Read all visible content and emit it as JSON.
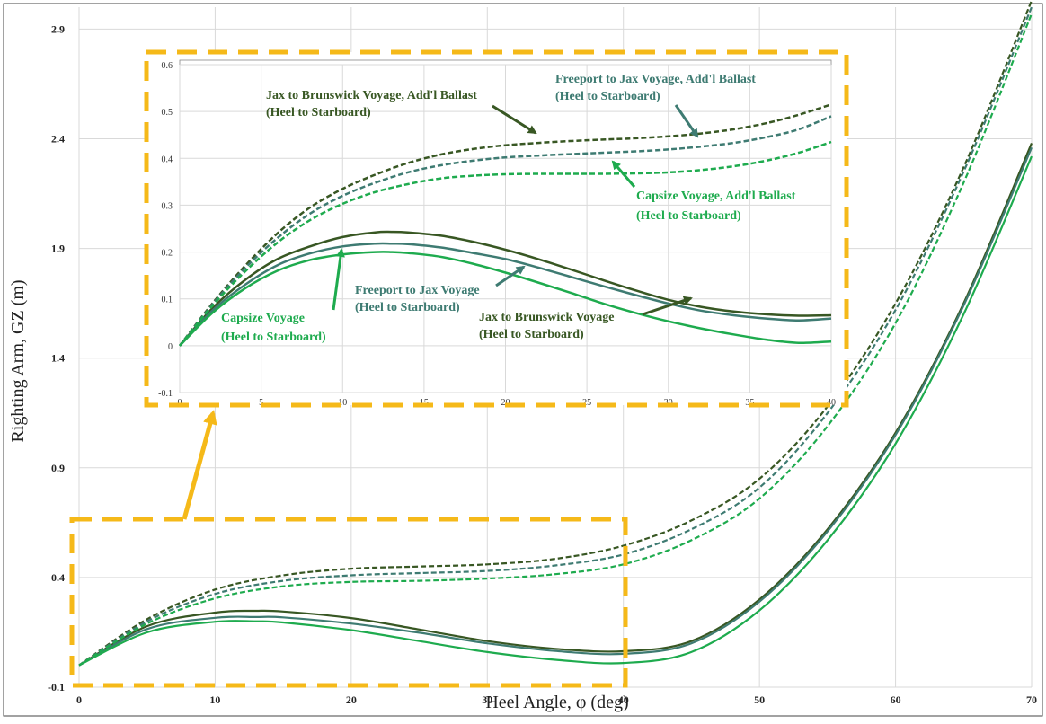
{
  "colors": {
    "jax": "#385723",
    "freeport": "#3e7b72",
    "capsize": "#1eab4e",
    "box": "#f5b919",
    "grid": "#d9d9d9"
  },
  "chart_data": [
    {
      "type": "line",
      "xlabel": "Heel Angle, φ (deg)",
      "ylabel": "Righting Arm, GZ (m)",
      "xlim": [
        0,
        70
      ],
      "ylim": [
        -0.1,
        3.0
      ],
      "xticks": [
        "0",
        "10",
        "20",
        "30",
        "40",
        "50",
        "60",
        "70"
      ],
      "yticks": [
        "-0.1",
        "0.4",
        "0.9",
        "1.4",
        "1.9",
        "2.4",
        "2.9"
      ],
      "grid": true,
      "series": [
        {
          "style": "solid",
          "color": "jax",
          "x": [
            0,
            5,
            10,
            13,
            15,
            20,
            25,
            30,
            35,
            40,
            45,
            50,
            55,
            60,
            65,
            70
          ],
          "y": [
            0,
            0.178,
            0.24,
            0.248,
            0.245,
            0.215,
            0.163,
            0.11,
            0.075,
            0.064,
            0.11,
            0.3,
            0.62,
            1.06,
            1.65,
            2.38
          ]
        },
        {
          "style": "solid",
          "color": "freeport",
          "x": [
            0,
            5,
            10,
            13,
            15,
            20,
            25,
            30,
            35,
            40,
            45,
            50,
            55,
            60,
            65,
            70
          ],
          "y": [
            0,
            0.165,
            0.216,
            0.22,
            0.218,
            0.19,
            0.148,
            0.1,
            0.065,
            0.052,
            0.1,
            0.29,
            0.61,
            1.05,
            1.64,
            2.36
          ]
        },
        {
          "style": "solid",
          "color": "capsize",
          "x": [
            0,
            5,
            10,
            13,
            15,
            20,
            25,
            30,
            35,
            40,
            45,
            50,
            55,
            60,
            65,
            70
          ],
          "y": [
            0,
            0.15,
            0.198,
            0.2,
            0.195,
            0.16,
            0.11,
            0.06,
            0.025,
            0.01,
            0.06,
            0.25,
            0.57,
            1.01,
            1.6,
            2.32
          ]
        },
        {
          "style": "dashed",
          "color": "jax",
          "x": [
            0,
            5,
            10,
            15,
            20,
            25,
            30,
            35,
            40,
            45,
            50,
            55,
            60,
            65,
            70
          ],
          "y": [
            0,
            0.21,
            0.345,
            0.41,
            0.44,
            0.45,
            0.46,
            0.485,
            0.545,
            0.66,
            0.85,
            1.18,
            1.65,
            2.27,
            3.03
          ]
        },
        {
          "style": "dashed",
          "color": "freeport",
          "x": [
            0,
            5,
            10,
            15,
            20,
            25,
            30,
            35,
            40,
            45,
            50,
            55,
            60,
            65,
            70
          ],
          "y": [
            0,
            0.2,
            0.325,
            0.385,
            0.41,
            0.42,
            0.43,
            0.455,
            0.505,
            0.62,
            0.81,
            1.15,
            1.62,
            2.25,
            3.0
          ]
        },
        {
          "style": "dashed",
          "color": "capsize",
          "x": [
            0,
            5,
            10,
            15,
            20,
            25,
            30,
            35,
            40,
            45,
            50,
            55,
            60,
            65,
            70
          ],
          "y": [
            0,
            0.19,
            0.305,
            0.36,
            0.38,
            0.385,
            0.395,
            0.415,
            0.46,
            0.57,
            0.76,
            1.09,
            1.56,
            2.2,
            2.97
          ]
        }
      ]
    },
    {
      "type": "line",
      "xlim": [
        0,
        40
      ],
      "ylim": [
        -0.1,
        0.6
      ],
      "xticks": [
        "0",
        "5",
        "10",
        "15",
        "20",
        "25",
        "30",
        "35",
        "40"
      ],
      "yticks": [
        "-0.1",
        "0",
        "0.1",
        "0.2",
        "0.3",
        "0.4",
        "0.5",
        "0.6"
      ],
      "grid": true,
      "series": [
        {
          "style": "solid",
          "color": "jax",
          "x": [
            0,
            2,
            4,
            6,
            8,
            10,
            12,
            13,
            14,
            16,
            18,
            20,
            22,
            24,
            26,
            28,
            30,
            32,
            34,
            36,
            38,
            40
          ],
          "y": [
            0,
            0.08,
            0.14,
            0.185,
            0.212,
            0.232,
            0.242,
            0.243,
            0.242,
            0.235,
            0.222,
            0.205,
            0.185,
            0.163,
            0.14,
            0.118,
            0.098,
            0.083,
            0.073,
            0.067,
            0.064,
            0.065
          ]
        },
        {
          "style": "solid",
          "color": "freeport",
          "x": [
            0,
            2,
            4,
            6,
            8,
            10,
            12,
            13,
            14,
            16,
            18,
            20,
            22,
            24,
            26,
            28,
            30,
            32,
            34,
            36,
            38,
            40
          ],
          "y": [
            0,
            0.075,
            0.13,
            0.172,
            0.197,
            0.212,
            0.218,
            0.218,
            0.217,
            0.21,
            0.198,
            0.185,
            0.167,
            0.147,
            0.127,
            0.108,
            0.09,
            0.075,
            0.065,
            0.058,
            0.054,
            0.058
          ]
        },
        {
          "style": "solid",
          "color": "capsize",
          "x": [
            0,
            2,
            4,
            6,
            8,
            10,
            12,
            13,
            14,
            16,
            18,
            20,
            22,
            24,
            26,
            28,
            30,
            32,
            34,
            36,
            38,
            40
          ],
          "y": [
            0,
            0.07,
            0.122,
            0.16,
            0.183,
            0.195,
            0.2,
            0.2,
            0.198,
            0.19,
            0.175,
            0.156,
            0.135,
            0.113,
            0.09,
            0.07,
            0.052,
            0.037,
            0.024,
            0.013,
            0.006,
            0.009
          ]
        },
        {
          "style": "dashed",
          "color": "jax",
          "x": [
            0,
            2,
            4,
            6,
            8,
            10,
            12,
            14,
            16,
            18,
            20,
            22,
            24,
            26,
            28,
            30,
            32,
            34,
            36,
            38,
            40
          ],
          "y": [
            0,
            0.09,
            0.17,
            0.24,
            0.295,
            0.335,
            0.365,
            0.39,
            0.408,
            0.42,
            0.428,
            0.433,
            0.437,
            0.44,
            0.443,
            0.447,
            0.453,
            0.462,
            0.475,
            0.493,
            0.515
          ]
        },
        {
          "style": "dashed",
          "color": "freeport",
          "x": [
            0,
            2,
            4,
            6,
            8,
            10,
            12,
            14,
            16,
            18,
            20,
            22,
            24,
            26,
            28,
            30,
            32,
            34,
            36,
            38,
            40
          ],
          "y": [
            0,
            0.088,
            0.165,
            0.23,
            0.282,
            0.32,
            0.348,
            0.37,
            0.385,
            0.395,
            0.402,
            0.406,
            0.409,
            0.412,
            0.415,
            0.419,
            0.425,
            0.433,
            0.445,
            0.462,
            0.49
          ]
        },
        {
          "style": "dashed",
          "color": "capsize",
          "x": [
            0,
            2,
            4,
            6,
            8,
            10,
            12,
            14,
            16,
            18,
            20,
            22,
            24,
            26,
            28,
            30,
            32,
            34,
            36,
            38,
            40
          ],
          "y": [
            0,
            0.085,
            0.158,
            0.22,
            0.268,
            0.303,
            0.328,
            0.345,
            0.357,
            0.363,
            0.366,
            0.367,
            0.367,
            0.367,
            0.368,
            0.37,
            0.375,
            0.383,
            0.395,
            0.412,
            0.435
          ]
        }
      ],
      "annotations": [
        {
          "id": "ann-jax-ballast",
          "line1": "Jax to Brunswick Voyage, Add'l Ballast",
          "line2": "(Heel to Starboard)",
          "color": "jax"
        },
        {
          "id": "ann-freeport-ballast",
          "line1": "Freeport to Jax Voyage, Add'l Ballast",
          "line2": "(Heel to Starboard)",
          "color": "freeport"
        },
        {
          "id": "ann-capsize-ballast",
          "line1": "Capsize Voyage, Add'l Ballast",
          "line2": "(Heel to Starboard)",
          "color": "capsize"
        },
        {
          "id": "ann-freeport",
          "line1": "Freeport to Jax Voyage",
          "line2": "(Heel to Starboard)",
          "color": "freeport"
        },
        {
          "id": "ann-capsize",
          "line1": "Capsize Voyage",
          "line2": "(Heel to Starboard)",
          "color": "capsize"
        },
        {
          "id": "ann-jax",
          "line1": "Jax to Brunswick Voyage",
          "line2": "(Heel to Starboard)",
          "color": "jax"
        }
      ]
    }
  ]
}
